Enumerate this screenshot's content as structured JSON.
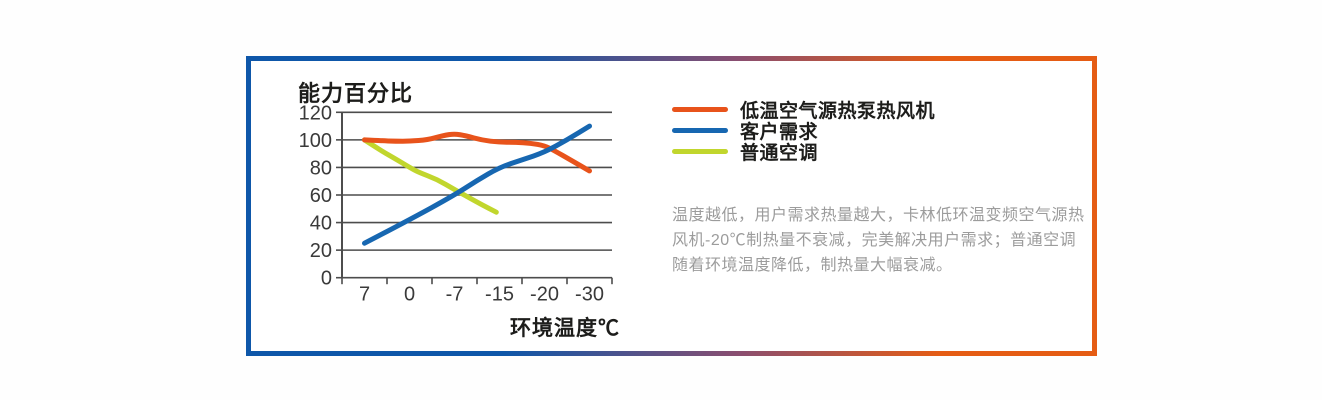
{
  "frame": {
    "border_gradient": [
      "#0e57a9",
      "#8a4e70",
      "#e55c14"
    ]
  },
  "chart_data": {
    "type": "line",
    "title": "能力百分比",
    "xlabel": "环境温度℃",
    "ylabel": "能力百分比",
    "categories": [
      "7",
      "0",
      "-7",
      "-15",
      "-20",
      "-30"
    ],
    "ylim": [
      0,
      120
    ],
    "ytick_step": 20,
    "ytick_labels": [
      "0",
      "20",
      "40",
      "60",
      "80",
      "100",
      "120"
    ],
    "grid": true,
    "grid_color": "#4d4d4d",
    "tick_text_color": "#3a3a3a",
    "legend_position": "right",
    "series": [
      {
        "name": "低温空气源热泵热风机",
        "color": "#e8531b",
        "values": [
          100,
          99,
          104,
          98,
          96,
          78
        ],
        "points": [
          [
            0,
            100
          ],
          [
            0.35,
            99.4
          ],
          [
            0.7,
            99
          ],
          [
            1,
            99
          ],
          [
            1.4,
            100
          ],
          [
            1.75,
            103.2
          ],
          [
            2,
            104.4
          ],
          [
            2.25,
            103
          ],
          [
            2.6,
            99.8
          ],
          [
            3,
            98.2
          ],
          [
            3.35,
            98.3
          ],
          [
            3.7,
            97.6
          ],
          [
            4,
            95.8
          ],
          [
            4.2,
            92.5
          ],
          [
            4.6,
            85
          ],
          [
            5,
            77.5
          ]
        ]
      },
      {
        "name": "客户需求",
        "color": "#1767b1",
        "values": [
          25,
          42,
          60,
          80,
          91,
          110
        ],
        "points": [
          [
            0,
            25
          ],
          [
            1,
            42
          ],
          [
            2,
            60
          ],
          [
            2.5,
            70.5
          ],
          [
            3,
            80
          ],
          [
            3.5,
            85.5
          ],
          [
            4,
            91
          ],
          [
            4.5,
            100
          ],
          [
            5,
            110
          ]
        ]
      },
      {
        "name": "普通空调",
        "color": "#c1d62d",
        "values": [
          100,
          80,
          64,
          48,
          null,
          null
        ],
        "points": [
          [
            0,
            100
          ],
          [
            0.35,
            92.5
          ],
          [
            0.7,
            86
          ],
          [
            1,
            80
          ],
          [
            1.2,
            76.5
          ],
          [
            1.6,
            71.5
          ],
          [
            2,
            64
          ],
          [
            2.3,
            58.5
          ],
          [
            2.6,
            53
          ],
          [
            2.93,
            47.5
          ]
        ]
      }
    ]
  },
  "description": {
    "full_text": "温度越低，用户需求热量越大，卡林低环温变频空气源热风机-20℃制热量不衰减，完美解决用户需求；普通空调随着环境温度降低，制热量大幅衰减。",
    "lines": [
      "温度越低，用户需求热量越大，卡林低环温变频空气源热",
      "风机-20℃制热量不衰减，完美解决用户需求；普通空调",
      "随着环境温度降低，制热量大幅衰减。"
    ]
  }
}
